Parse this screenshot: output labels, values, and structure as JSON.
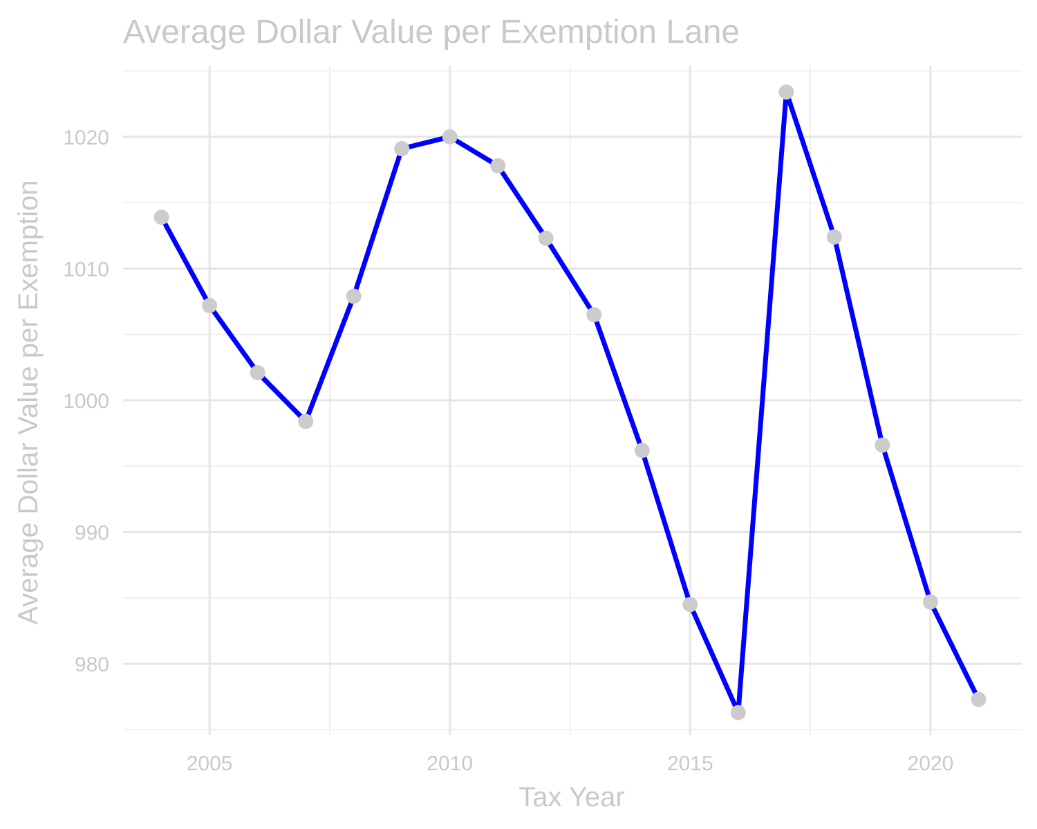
{
  "colors": {
    "line": "#0000ff",
    "point": "#cccccc",
    "text": "#c9c9c9",
    "grid": "#e5e5e5"
  },
  "chart_data": {
    "type": "line",
    "title": "Average Dollar Value per Exemption Lane",
    "xlabel": "Tax Year",
    "ylabel": "Average Dollar Value per Exemption",
    "x": [
      2004,
      2005,
      2006,
      2007,
      2008,
      2009,
      2010,
      2011,
      2012,
      2013,
      2014,
      2015,
      2016,
      2017,
      2018,
      2019,
      2020,
      2021
    ],
    "values": [
      1013.9,
      1007.2,
      1002.1,
      998.4,
      1007.9,
      1019.1,
      1020.0,
      1017.8,
      1012.3,
      1006.5,
      996.2,
      984.5,
      976.3,
      1023.4,
      1012.4,
      996.6,
      984.7,
      977.3
    ],
    "xlim": [
      2003.2,
      2021.9
    ],
    "ylim": [
      974.6,
      1025.4
    ],
    "x_ticks": [
      2005,
      2010,
      2015,
      2020
    ],
    "x_tick_labels": [
      "2005",
      "2010",
      "2015",
      "2020"
    ],
    "y_ticks": [
      980,
      990,
      1000,
      1010,
      1020
    ],
    "y_tick_labels": [
      "980",
      "990",
      "1000",
      "1010",
      "1020"
    ],
    "grid": true,
    "legend": "none"
  }
}
